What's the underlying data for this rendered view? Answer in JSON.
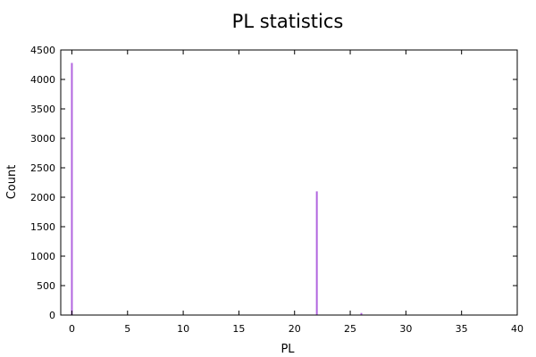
{
  "chart_data": {
    "type": "bar",
    "title": "PL statistics",
    "xlabel": "PL",
    "ylabel": "Count",
    "xlim": [
      -1,
      40
    ],
    "ylim": [
      0,
      4500
    ],
    "xticks": [
      0,
      5,
      10,
      15,
      20,
      25,
      30,
      35,
      40
    ],
    "yticks": [
      0,
      500,
      1000,
      1500,
      2000,
      2500,
      3000,
      3500,
      4000,
      4500
    ],
    "grid": false,
    "series_color": "#b266e0",
    "x": [
      0,
      13,
      14,
      16,
      18,
      19,
      22,
      26
    ],
    "values": [
      4280,
      3,
      5,
      3,
      6,
      4,
      2100,
      35
    ]
  }
}
